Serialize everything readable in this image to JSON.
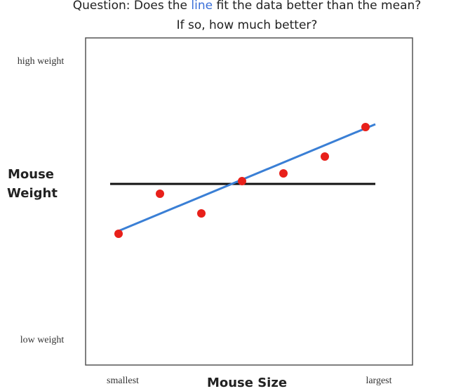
{
  "header": {
    "title_parts": [
      "Question:  Does the ",
      "line",
      " fit the data better than the mean?"
    ],
    "subtitle": "If so, how much better?"
  },
  "y_axis": {
    "label_lines": [
      "Mouse",
      "Weight"
    ],
    "top": "high weight",
    "bottom": "low weight"
  },
  "x_axis": {
    "label": "Mouse Size",
    "left": "smallest",
    "right": "largest"
  }
}
